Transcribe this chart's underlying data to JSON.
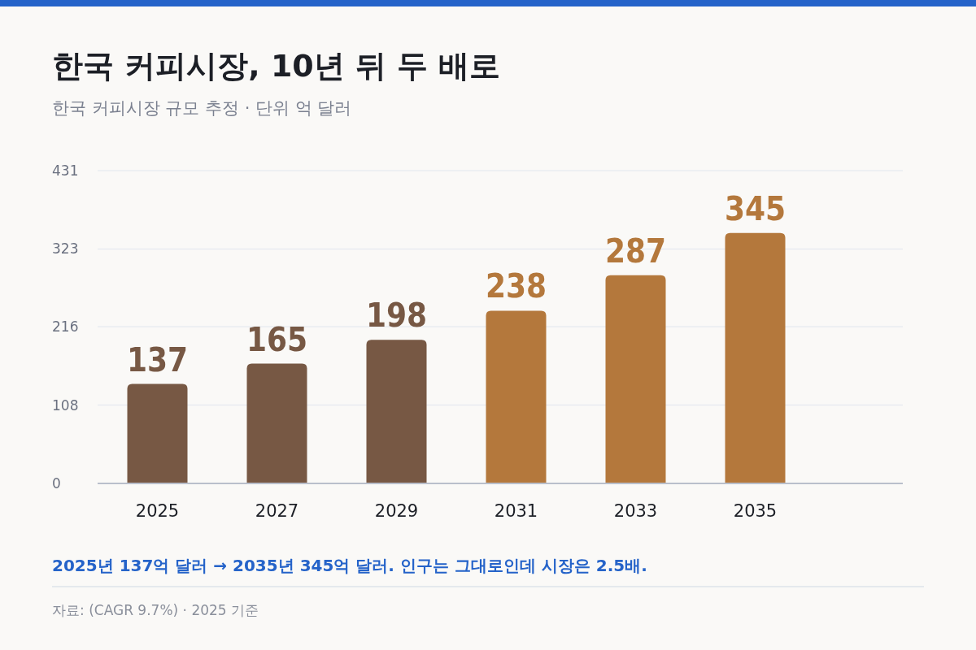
{
  "chart_data": {
    "type": "bar",
    "title": "한국 커피시장, 10년 뒤 두 배로",
    "subtitle": "한국 커피시장 규모 추정 · 단위 억 달러",
    "categories": [
      "2025",
      "2027",
      "2029",
      "2031",
      "2033",
      "2035"
    ],
    "values": [
      137,
      165,
      198,
      238,
      287,
      345
    ],
    "colors": [
      "#775844",
      "#775844",
      "#775844",
      "#b4783c",
      "#b4783c",
      "#b4783c"
    ],
    "ylim": [
      0,
      431
    ],
    "yticks": [
      0,
      108,
      216,
      323,
      431
    ],
    "grid": "y",
    "data_labels": true,
    "annotations": [
      "2025년 137억 달러 → 2035년 345억 달러. 인구는 그대로인데 시장은 2.5배.",
      "자료: (CAGR 9.7%) · 2025 기준"
    ]
  }
}
